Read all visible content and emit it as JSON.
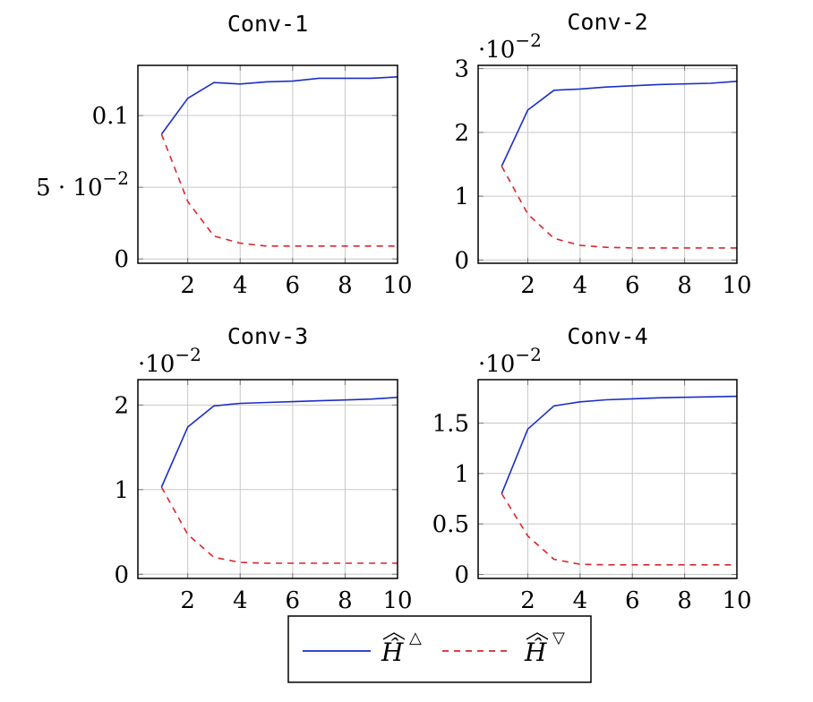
{
  "chart_data": [
    {
      "type": "line",
      "title": "Conv-1",
      "multiplier_label": "",
      "x": [
        1,
        2,
        3,
        4,
        5,
        6,
        7,
        8,
        9,
        10
      ],
      "series": [
        {
          "name": "Ĥ△",
          "style": "solid",
          "color": "#1a2ec8",
          "values": [
            0.087,
            0.112,
            0.123,
            0.122,
            0.1235,
            0.124,
            0.126,
            0.126,
            0.126,
            0.127
          ]
        },
        {
          "name": "Ĥ▽",
          "style": "dashed",
          "color": "#d9262c",
          "values": [
            0.087,
            0.04,
            0.016,
            0.011,
            0.009,
            0.009,
            0.009,
            0.009,
            0.009,
            0.009
          ]
        }
      ],
      "xlim": [
        0.1,
        10
      ],
      "ylim": [
        -0.003,
        0.135
      ],
      "xticks": [
        2,
        4,
        6,
        8,
        10
      ],
      "xtick_labels": [
        "2",
        "4",
        "6",
        "8",
        "10"
      ],
      "yticks": [
        0,
        0.05,
        0.1
      ],
      "ytick_labels": [
        "0",
        "5·10⁻²",
        "0.1"
      ],
      "grid": true
    },
    {
      "type": "line",
      "title": "Conv-2",
      "multiplier_label": "·10⁻²",
      "x": [
        1,
        2,
        3,
        4,
        5,
        6,
        7,
        8,
        9,
        10
      ],
      "series": [
        {
          "name": "Ĥ△",
          "style": "solid",
          "color": "#1a2ec8",
          "values": [
            1.47,
            2.35,
            2.66,
            2.68,
            2.71,
            2.73,
            2.75,
            2.76,
            2.77,
            2.8
          ]
        },
        {
          "name": "Ĥ▽",
          "style": "dashed",
          "color": "#d9262c",
          "values": [
            1.47,
            0.72,
            0.34,
            0.23,
            0.2,
            0.19,
            0.19,
            0.19,
            0.19,
            0.19
          ]
        }
      ],
      "xlim": [
        0.1,
        10
      ],
      "ylim": [
        -0.05,
        3.05
      ],
      "xticks": [
        2,
        4,
        6,
        8,
        10
      ],
      "xtick_labels": [
        "2",
        "4",
        "6",
        "8",
        "10"
      ],
      "yticks": [
        0,
        1,
        2,
        3
      ],
      "ytick_labels": [
        "0",
        "1",
        "2",
        "3"
      ],
      "grid": true
    },
    {
      "type": "line",
      "title": "Conv-3",
      "multiplier_label": "·10⁻²",
      "x": [
        1,
        2,
        3,
        4,
        5,
        6,
        7,
        8,
        9,
        10
      ],
      "series": [
        {
          "name": "Ĥ△",
          "style": "solid",
          "color": "#1a2ec8",
          "values": [
            1.03,
            1.74,
            1.99,
            2.02,
            2.03,
            2.04,
            2.05,
            2.06,
            2.07,
            2.09
          ]
        },
        {
          "name": "Ĥ▽",
          "style": "dashed",
          "color": "#d9262c",
          "values": [
            1.03,
            0.47,
            0.2,
            0.14,
            0.13,
            0.13,
            0.13,
            0.13,
            0.13,
            0.13
          ]
        }
      ],
      "xlim": [
        0.1,
        10
      ],
      "ylim": [
        -0.05,
        2.3
      ],
      "xticks": [
        2,
        4,
        6,
        8,
        10
      ],
      "xtick_labels": [
        "2",
        "4",
        "6",
        "8",
        "10"
      ],
      "yticks": [
        0,
        1,
        2
      ],
      "ytick_labels": [
        "0",
        "1",
        "2"
      ],
      "grid": true
    },
    {
      "type": "line",
      "title": "Conv-4",
      "multiplier_label": "·10⁻²",
      "x": [
        1,
        2,
        3,
        4,
        5,
        6,
        7,
        8,
        9,
        10
      ],
      "series": [
        {
          "name": "Ĥ△",
          "style": "solid",
          "color": "#1a2ec8",
          "values": [
            0.8,
            1.44,
            1.67,
            1.71,
            1.73,
            1.74,
            1.75,
            1.755,
            1.76,
            1.765
          ]
        },
        {
          "name": "Ĥ▽",
          "style": "dashed",
          "color": "#d9262c",
          "values": [
            0.8,
            0.38,
            0.15,
            0.1,
            0.095,
            0.095,
            0.095,
            0.095,
            0.095,
            0.095
          ]
        }
      ],
      "xlim": [
        0.1,
        10
      ],
      "ylim": [
        -0.04,
        1.93
      ],
      "xticks": [
        2,
        4,
        6,
        8,
        10
      ],
      "xtick_labels": [
        "2",
        "4",
        "6",
        "8",
        "10"
      ],
      "yticks": [
        0,
        0.5,
        1,
        1.5
      ],
      "ytick_labels": [
        "0",
        "0.5",
        "1",
        "1.5"
      ],
      "grid": true
    }
  ],
  "legend": {
    "placement": "bottom-center",
    "entries": [
      {
        "label": "Ĥ",
        "marker": "△",
        "style": "solid",
        "color": "#1a2ec8"
      },
      {
        "label": "Ĥ",
        "marker": "▽",
        "style": "dashed",
        "color": "#d9262c"
      }
    ]
  }
}
